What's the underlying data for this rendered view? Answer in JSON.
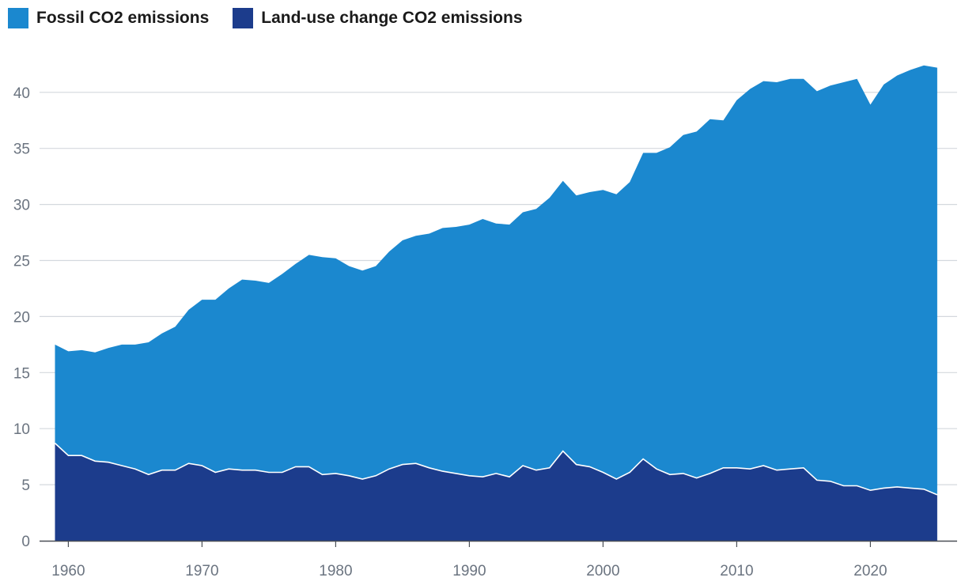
{
  "colors": {
    "fossil": "#1b88cf",
    "land_use": "#1c3c8c",
    "grid": "#d4d8de",
    "axis": "#4a4f56",
    "separator": "#ffffff"
  },
  "chart_data": {
    "type": "area",
    "stacked": true,
    "grid": true,
    "legend_position": "top-left",
    "ylim": [
      0,
      43
    ],
    "y_ticks": [
      0,
      5,
      10,
      15,
      20,
      25,
      30,
      35,
      40
    ],
    "x_ticks": [
      1960,
      1970,
      1980,
      1990,
      2000,
      2010,
      2020
    ],
    "x": [
      1959,
      1960,
      1961,
      1962,
      1963,
      1964,
      1965,
      1966,
      1967,
      1968,
      1969,
      1970,
      1971,
      1972,
      1973,
      1974,
      1975,
      1976,
      1977,
      1978,
      1979,
      1980,
      1981,
      1982,
      1983,
      1984,
      1985,
      1986,
      1987,
      1988,
      1989,
      1990,
      1991,
      1992,
      1993,
      1994,
      1995,
      1996,
      1997,
      1998,
      1999,
      2000,
      2001,
      2002,
      2003,
      2004,
      2005,
      2006,
      2007,
      2008,
      2009,
      2010,
      2011,
      2012,
      2013,
      2014,
      2015,
      2016,
      2017,
      2018,
      2019,
      2020,
      2021,
      2022,
      2023,
      2024,
      2025
    ],
    "series": [
      {
        "name": "Land-use change CO2 emissions",
        "color_key": "land_use",
        "values": [
          8.7,
          7.6,
          7.6,
          7.1,
          7.0,
          6.7,
          6.4,
          5.9,
          6.3,
          6.3,
          6.9,
          6.7,
          6.1,
          6.4,
          6.3,
          6.3,
          6.1,
          6.1,
          6.6,
          6.6,
          5.9,
          6.0,
          5.8,
          5.5,
          5.8,
          6.4,
          6.8,
          6.9,
          6.5,
          6.2,
          6.0,
          5.8,
          5.7,
          6.0,
          5.7,
          6.7,
          6.3,
          6.5,
          8.0,
          6.8,
          6.6,
          6.1,
          5.5,
          6.1,
          7.3,
          6.4,
          5.9,
          6.0,
          5.6,
          6.0,
          6.5,
          6.5,
          6.4,
          6.7,
          6.3,
          6.4,
          6.5,
          5.4,
          5.3,
          4.9,
          4.9,
          4.5,
          4.7,
          4.8,
          4.7,
          4.6,
          4.1
        ]
      },
      {
        "name": "Fossil CO2 emissions",
        "color_key": "fossil",
        "values": [
          8.8,
          9.3,
          9.4,
          9.7,
          10.2,
          10.8,
          11.1,
          11.8,
          12.2,
          12.8,
          13.7,
          14.8,
          15.4,
          16.1,
          17.0,
          16.9,
          16.9,
          17.7,
          18.1,
          18.9,
          19.4,
          19.2,
          18.7,
          18.6,
          18.7,
          19.4,
          20.0,
          20.3,
          20.9,
          21.7,
          22.0,
          22.4,
          23.0,
          22.3,
          22.5,
          22.6,
          23.3,
          24.1,
          24.1,
          24.0,
          24.5,
          25.2,
          25.4,
          25.9,
          27.3,
          28.2,
          29.2,
          30.2,
          30.9,
          31.6,
          31.0,
          32.8,
          33.9,
          34.3,
          34.6,
          34.8,
          34.7,
          34.7,
          35.3,
          36.0,
          36.3,
          34.4,
          36.0,
          36.7,
          37.3,
          37.8,
          38.1
        ]
      }
    ]
  },
  "legend": {
    "items": [
      {
        "label": "Fossil CO2 emissions",
        "color_key": "fossil"
      },
      {
        "label": "Land-use change CO2 emissions",
        "color_key": "land_use"
      }
    ]
  }
}
